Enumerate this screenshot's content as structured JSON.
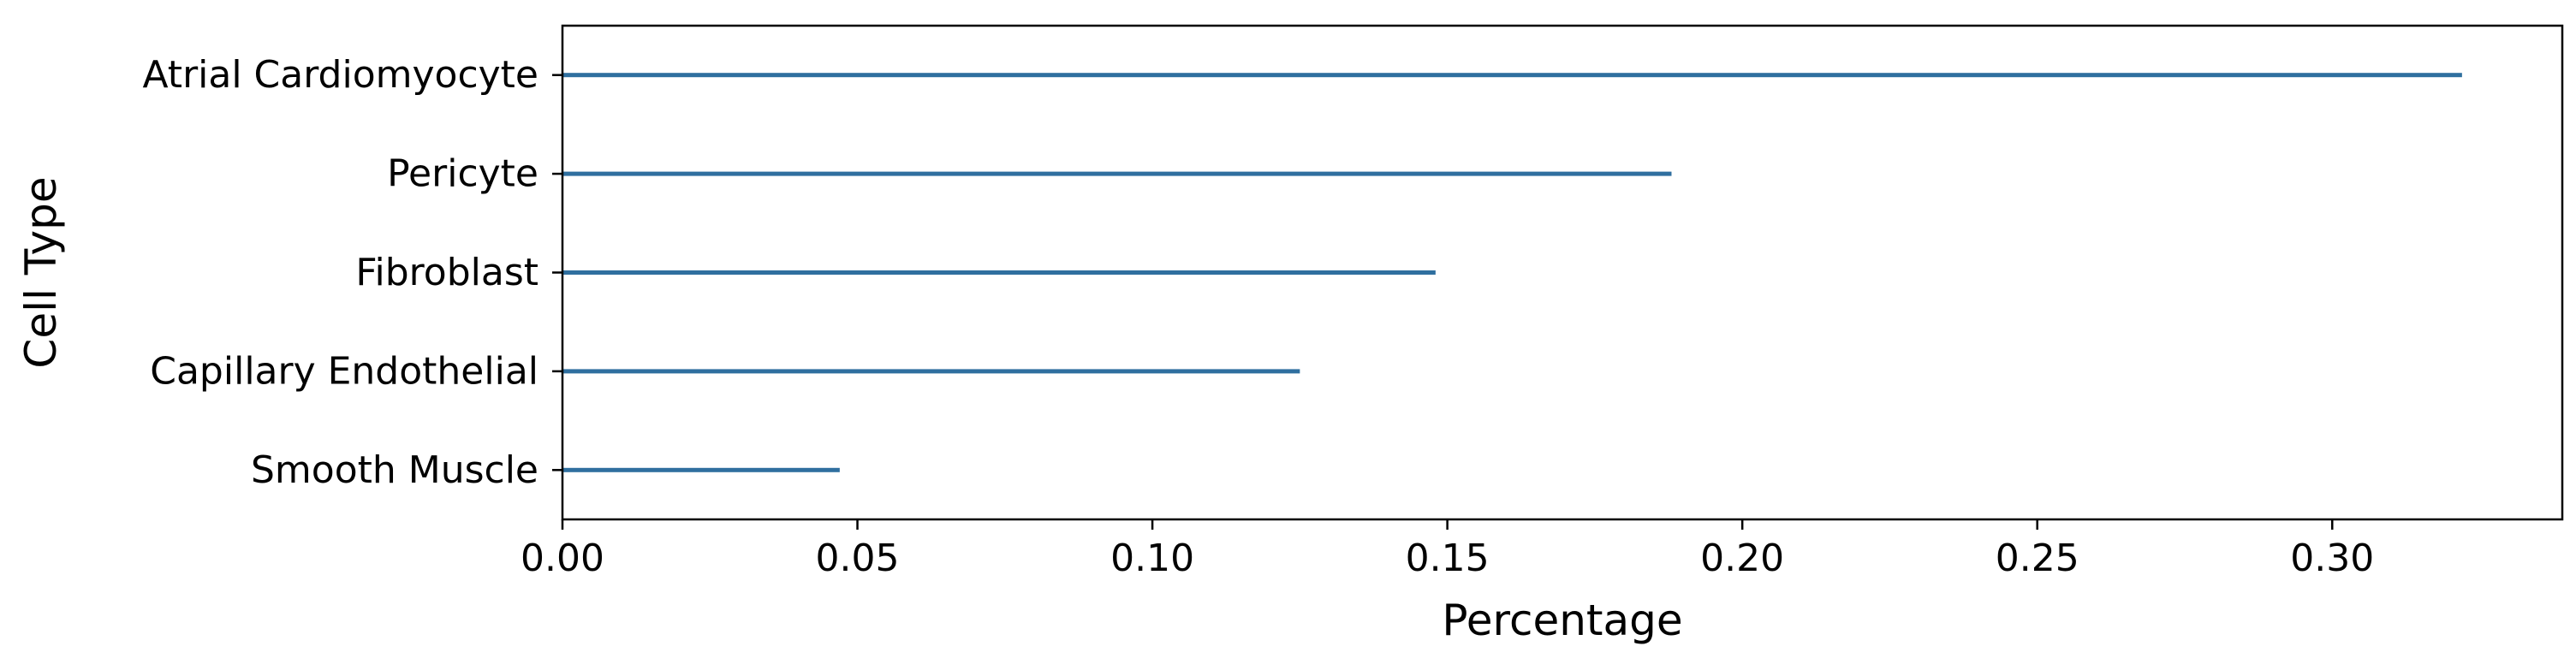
{
  "chart_data": {
    "type": "bar",
    "orientation": "horizontal",
    "title": "",
    "xlabel": "Percentage",
    "ylabel": "Cell Type",
    "categories": [
      "Atrial Cardiomyocyte",
      "Pericyte",
      "Fibroblast",
      "Capillary Endothelial",
      "Smooth Muscle"
    ],
    "values": [
      0.322,
      0.188,
      0.148,
      0.125,
      0.047
    ],
    "xlim": [
      0,
      0.339
    ],
    "xticks": [
      0.0,
      0.05,
      0.1,
      0.15,
      0.2,
      0.25,
      0.3
    ],
    "xtick_labels": [
      "0.00",
      "0.05",
      "0.10",
      "0.15",
      "0.20",
      "0.25",
      "0.30"
    ],
    "grid": false,
    "legend": "none",
    "bar_color": "#2f6f9f"
  }
}
